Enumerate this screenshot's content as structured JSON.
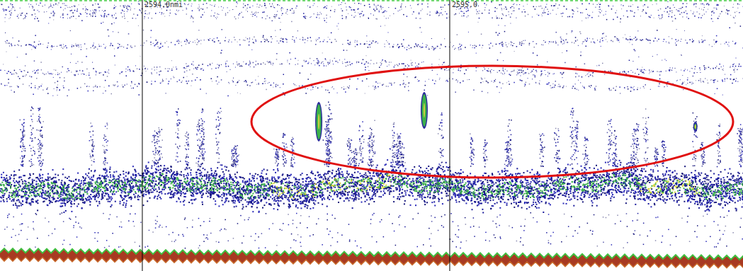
{
  "chart_data": {
    "type": "echogram",
    "xlim": [
      2593.537,
      2595.954
    ],
    "xticks": [
      {
        "value": 2594,
        "label": "2594.0nmi"
      },
      {
        "value": 2595,
        "label": "2595.0"
      }
    ],
    "x": [
      2594.574,
      2594.917,
      2595.799
    ],
    "grid": true,
    "tick_labels": "x"
  }
}
